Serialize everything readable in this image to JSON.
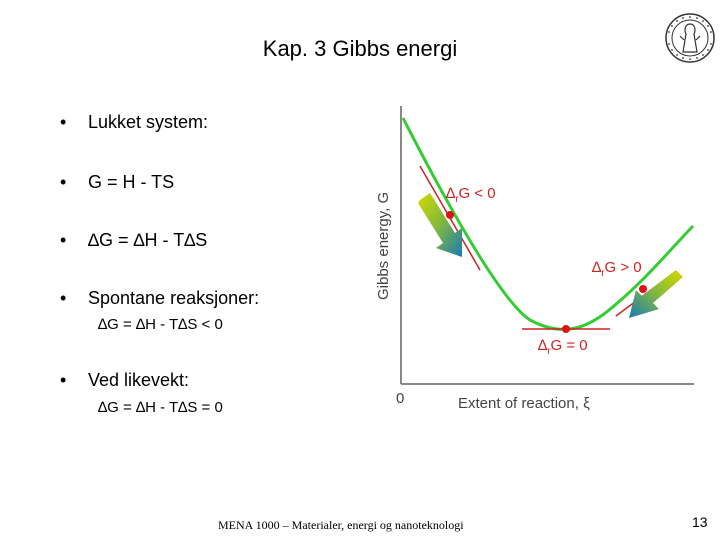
{
  "slide": {
    "title": "Kap. 3 Gibbs energi",
    "footer": "MENA 1000 – Materialer, energi og nanoteknologi",
    "page_number": "13"
  },
  "bullets": [
    {
      "marker": "•",
      "text": "Lukket system:"
    },
    {
      "marker": "•",
      "text": "G = H - TS"
    },
    {
      "marker": "•",
      "text": "∆G = ∆H - T∆S"
    },
    {
      "marker": "•",
      "text": "Spontane reaksjoner:",
      "sub": "∆G = ∆H - T∆S < 0"
    },
    {
      "marker": "•",
      "text": "Ved likevekt:",
      "sub": "∆G = ∆H - T∆S = 0"
    }
  ],
  "figure": {
    "ylabel": "Gibbs energy, G",
    "xlabel": "Extent of reaction, ξ",
    "origin": "0",
    "annotations": {
      "left_prefix": "∆",
      "left_sub": "r",
      "left_suffix": "G < 0",
      "right_prefix": "∆",
      "right_sub": "r",
      "right_suffix": "G > 0",
      "min_prefix": "∆",
      "min_sub": "r",
      "min_suffix": "G = 0"
    },
    "colors": {
      "curve": "#33cc33",
      "tangent": "#cc2222",
      "point": "#dd1111",
      "label": "#cc2222",
      "arrow_start": "#c8d400",
      "arrow_end": "#1a7ab5"
    }
  }
}
